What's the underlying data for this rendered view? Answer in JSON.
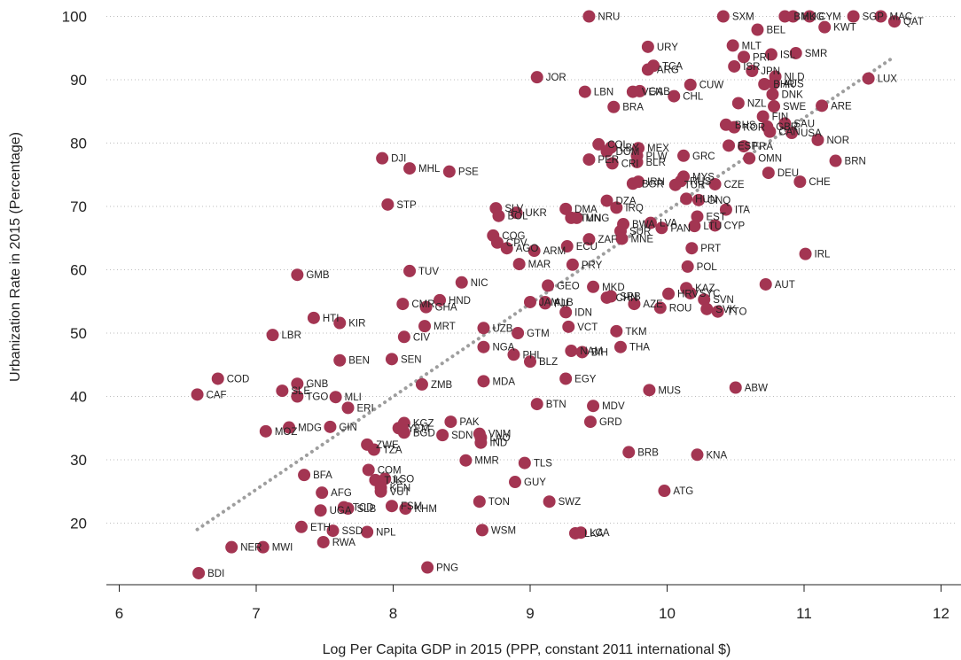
{
  "chart_data": {
    "type": "scatter",
    "title": "",
    "xlabel": "Log Per Capita GDP in 2015 (PPP, constant 2011 international $)",
    "ylabel": "Urbanization Rate in 2015 (Percentage)",
    "xlim": [
      6,
      12
    ],
    "ylim": [
      10,
      100
    ],
    "xticks": [
      6,
      7,
      8,
      9,
      10,
      11,
      12
    ],
    "yticks": [
      20,
      30,
      40,
      50,
      60,
      70,
      80,
      90,
      100
    ],
    "grid": "horizontal dotted",
    "marker_color": "#a33552",
    "trendline": {
      "style": "dotted",
      "color": "#9e9e9e",
      "x": [
        6.57,
        11.65
      ],
      "y": [
        19.0,
        93.5
      ]
    },
    "points": [
      {
        "label": "BDI",
        "x": 6.58,
        "y": 12.1
      },
      {
        "label": "CAF",
        "x": 6.57,
        "y": 40.3
      },
      {
        "label": "COD",
        "x": 6.72,
        "y": 42.8
      },
      {
        "label": "NER",
        "x": 6.82,
        "y": 16.2
      },
      {
        "label": "MWI",
        "x": 7.05,
        "y": 16.2
      },
      {
        "label": "MOZ",
        "x": 7.07,
        "y": 34.5
      },
      {
        "label": "LBR",
        "x": 7.12,
        "y": 49.7
      },
      {
        "label": "SLE",
        "x": 7.19,
        "y": 40.9
      },
      {
        "label": "HTI",
        "x": 7.42,
        "y": 52.4
      },
      {
        "label": "GMB",
        "x": 7.3,
        "y": 59.2
      },
      {
        "label": "MDG",
        "x": 7.24,
        "y": 35.1
      },
      {
        "label": "BFA",
        "x": 7.35,
        "y": 27.6
      },
      {
        "label": "ETH",
        "x": 7.33,
        "y": 19.4
      },
      {
        "label": "GNB",
        "x": 7.3,
        "y": 42.0
      },
      {
        "label": "TGO",
        "x": 7.3,
        "y": 40.0
      },
      {
        "label": "AFG",
        "x": 7.48,
        "y": 24.8
      },
      {
        "label": "UGA",
        "x": 7.47,
        "y": 22.0
      },
      {
        "label": "RWA",
        "x": 7.49,
        "y": 17.0
      },
      {
        "label": "SSD",
        "x": 7.56,
        "y": 18.8
      },
      {
        "label": "GIN",
        "x": 7.54,
        "y": 35.2
      },
      {
        "label": "MLI",
        "x": 7.58,
        "y": 39.9
      },
      {
        "label": "KIR",
        "x": 7.61,
        "y": 51.6
      },
      {
        "label": "BEN",
        "x": 7.61,
        "y": 45.7
      },
      {
        "label": "ERI",
        "x": 7.67,
        "y": 38.2
      },
      {
        "label": "TCD",
        "x": 7.64,
        "y": 22.5
      },
      {
        "label": "SLB",
        "x": 7.67,
        "y": 22.3
      },
      {
        "label": "ZWE",
        "x": 7.81,
        "y": 32.4
      },
      {
        "label": "TZA",
        "x": 7.86,
        "y": 31.6
      },
      {
        "label": "NPL",
        "x": 7.81,
        "y": 18.6
      },
      {
        "label": "COM",
        "x": 7.82,
        "y": 28.4
      },
      {
        "label": "TJK",
        "x": 7.87,
        "y": 26.8
      },
      {
        "label": "LSO",
        "x": 7.94,
        "y": 27.0
      },
      {
        "label": "KEN",
        "x": 7.91,
        "y": 25.6
      },
      {
        "label": "VUT",
        "x": 7.91,
        "y": 25.0
      },
      {
        "label": "FSM",
        "x": 7.99,
        "y": 22.7
      },
      {
        "label": "KHM",
        "x": 8.09,
        "y": 22.3
      },
      {
        "label": "DJI",
        "x": 7.92,
        "y": 77.6
      },
      {
        "label": "STP",
        "x": 7.96,
        "y": 70.3
      },
      {
        "label": "SEN",
        "x": 7.99,
        "y": 45.9
      },
      {
        "label": "CMR",
        "x": 8.07,
        "y": 54.6
      },
      {
        "label": "CIV",
        "x": 8.08,
        "y": 49.4
      },
      {
        "label": "YEM",
        "x": 8.04,
        "y": 35.0
      },
      {
        "label": "BGD",
        "x": 8.08,
        "y": 34.3
      },
      {
        "label": "KGZ",
        "x": 8.08,
        "y": 35.8
      },
      {
        "label": "MHL",
        "x": 8.12,
        "y": 76.0
      },
      {
        "label": "TUV",
        "x": 8.12,
        "y": 59.8
      },
      {
        "label": "GHA",
        "x": 8.24,
        "y": 54.1
      },
      {
        "label": "MRT",
        "x": 8.23,
        "y": 51.1
      },
      {
        "label": "ZMB",
        "x": 8.21,
        "y": 41.9
      },
      {
        "label": "HND",
        "x": 8.34,
        "y": 55.2
      },
      {
        "label": "PNG",
        "x": 8.25,
        "y": 13.0
      },
      {
        "label": "PSE",
        "x": 8.41,
        "y": 75.5
      },
      {
        "label": "NIC",
        "x": 8.5,
        "y": 58.0
      },
      {
        "label": "PAK",
        "x": 8.42,
        "y": 36.0
      },
      {
        "label": "SDN",
        "x": 8.36,
        "y": 33.9
      },
      {
        "label": "VNM",
        "x": 8.63,
        "y": 34.1
      },
      {
        "label": "LAO",
        "x": 8.64,
        "y": 33.5
      },
      {
        "label": "IND",
        "x": 8.64,
        "y": 32.7
      },
      {
        "label": "MMR",
        "x": 8.53,
        "y": 29.9
      },
      {
        "label": "TON",
        "x": 8.63,
        "y": 23.4
      },
      {
        "label": "WSM",
        "x": 8.65,
        "y": 18.9
      },
      {
        "label": "UZB",
        "x": 8.66,
        "y": 50.8
      },
      {
        "label": "NGA",
        "x": 8.66,
        "y": 47.8
      },
      {
        "label": "MDA",
        "x": 8.66,
        "y": 42.4
      },
      {
        "label": "SLV",
        "x": 8.75,
        "y": 69.7
      },
      {
        "label": "BOL",
        "x": 8.77,
        "y": 68.5
      },
      {
        "label": "COG",
        "x": 8.73,
        "y": 65.4
      },
      {
        "label": "CPV",
        "x": 8.76,
        "y": 64.3
      },
      {
        "label": "AGO",
        "x": 8.83,
        "y": 63.4
      },
      {
        "label": "UKR",
        "x": 8.9,
        "y": 69.0
      },
      {
        "label": "GTM",
        "x": 8.91,
        "y": 50.0
      },
      {
        "label": "PHL",
        "x": 8.88,
        "y": 46.6
      },
      {
        "label": "BLZ",
        "x": 9.0,
        "y": 45.5
      },
      {
        "label": "MAR",
        "x": 8.92,
        "y": 60.9
      },
      {
        "label": "JAM",
        "x": 9.0,
        "y": 54.9
      },
      {
        "label": "ALB",
        "x": 9.11,
        "y": 54.9
      },
      {
        "label": "FJI",
        "x": 9.11,
        "y": 54.7
      },
      {
        "label": "GEO",
        "x": 9.13,
        "y": 57.5
      },
      {
        "label": "ARM",
        "x": 9.03,
        "y": 63.0
      },
      {
        "label": "GUY",
        "x": 8.89,
        "y": 26.5
      },
      {
        "label": "TLS",
        "x": 8.96,
        "y": 29.5
      },
      {
        "label": "BTN",
        "x": 9.05,
        "y": 38.8
      },
      {
        "label": "SWZ",
        "x": 9.14,
        "y": 23.4
      },
      {
        "label": "JOR",
        "x": 9.05,
        "y": 90.4
      },
      {
        "label": "DMA",
        "x": 9.26,
        "y": 69.6
      },
      {
        "label": "TUN",
        "x": 9.3,
        "y": 68.2
      },
      {
        "label": "MNG",
        "x": 9.34,
        "y": 68.2
      },
      {
        "label": "ZAF",
        "x": 9.43,
        "y": 64.8
      },
      {
        "label": "ECU",
        "x": 9.27,
        "y": 63.7
      },
      {
        "label": "PRY",
        "x": 9.31,
        "y": 60.8
      },
      {
        "label": "IDN",
        "x": 9.26,
        "y": 53.3
      },
      {
        "label": "VCT",
        "x": 9.28,
        "y": 51.0
      },
      {
        "label": "NAM",
        "x": 9.3,
        "y": 47.2
      },
      {
        "label": "BIH",
        "x": 9.38,
        "y": 47.0
      },
      {
        "label": "EGY",
        "x": 9.26,
        "y": 42.8
      },
      {
        "label": "LKA",
        "x": 9.33,
        "y": 18.4
      },
      {
        "label": "LCA",
        "x": 9.37,
        "y": 18.5
      },
      {
        "label": "NRU",
        "x": 9.43,
        "y": 100.0
      },
      {
        "label": "LBN",
        "x": 9.4,
        "y": 88.1
      },
      {
        "label": "PER",
        "x": 9.43,
        "y": 77.4
      },
      {
        "label": "COL",
        "x": 9.5,
        "y": 79.8
      },
      {
        "label": "DOM",
        "x": 9.56,
        "y": 78.7
      },
      {
        "label": "LBY",
        "x": 9.59,
        "y": 79.3
      },
      {
        "label": "CRI",
        "x": 9.6,
        "y": 76.8
      },
      {
        "label": "DZA",
        "x": 9.56,
        "y": 70.9
      },
      {
        "label": "IRQ",
        "x": 9.63,
        "y": 69.8
      },
      {
        "label": "SUR",
        "x": 9.66,
        "y": 66.1
      },
      {
        "label": "BWA",
        "x": 9.68,
        "y": 67.2
      },
      {
        "label": "MNE",
        "x": 9.67,
        "y": 64.9
      },
      {
        "label": "CHN",
        "x": 9.56,
        "y": 55.6
      },
      {
        "label": "SRB",
        "x": 9.59,
        "y": 55.8
      },
      {
        "label": "MKD",
        "x": 9.46,
        "y": 57.3
      },
      {
        "label": "MDV",
        "x": 9.46,
        "y": 38.5
      },
      {
        "label": "GRD",
        "x": 9.44,
        "y": 36.0
      },
      {
        "label": "TKM",
        "x": 9.63,
        "y": 50.3
      },
      {
        "label": "THA",
        "x": 9.66,
        "y": 47.8
      },
      {
        "label": "BRB",
        "x": 9.72,
        "y": 31.2
      },
      {
        "label": "GAB",
        "x": 9.8,
        "y": 88.2
      },
      {
        "label": "VEN",
        "x": 9.75,
        "y": 88.1
      },
      {
        "label": "BRA",
        "x": 9.61,
        "y": 85.7
      },
      {
        "label": "ARG",
        "x": 9.86,
        "y": 91.6
      },
      {
        "label": "TCA",
        "x": 9.9,
        "y": 92.2
      },
      {
        "label": "URY",
        "x": 9.86,
        "y": 95.2
      },
      {
        "label": "MEX",
        "x": 9.79,
        "y": 79.2
      },
      {
        "label": "PLW",
        "x": 9.78,
        "y": 78.0
      },
      {
        "label": "BLR",
        "x": 9.78,
        "y": 77.0
      },
      {
        "label": "BGR",
        "x": 9.75,
        "y": 73.6
      },
      {
        "label": "IRN",
        "x": 9.79,
        "y": 73.9
      },
      {
        "label": "LVA",
        "x": 9.88,
        "y": 67.4
      },
      {
        "label": "PAN",
        "x": 9.96,
        "y": 66.6
      },
      {
        "label": "AZE",
        "x": 9.76,
        "y": 54.6
      },
      {
        "label": "ROU",
        "x": 9.95,
        "y": 54.0
      },
      {
        "label": "HRV",
        "x": 10.01,
        "y": 56.2
      },
      {
        "label": "MUS",
        "x": 9.87,
        "y": 41.0
      },
      {
        "label": "ATG",
        "x": 9.98,
        "y": 25.1
      },
      {
        "label": "CHL",
        "x": 10.05,
        "y": 87.4
      },
      {
        "label": "CUW",
        "x": 10.17,
        "y": 89.2
      },
      {
        "label": "GRC",
        "x": 10.12,
        "y": 78.0
      },
      {
        "label": "RUS",
        "x": 10.1,
        "y": 74.0
      },
      {
        "label": "TUR",
        "x": 10.06,
        "y": 73.4
      },
      {
        "label": "MYS",
        "x": 10.12,
        "y": 74.7
      },
      {
        "label": "HUN",
        "x": 10.14,
        "y": 71.2
      },
      {
        "label": "GNQ",
        "x": 10.23,
        "y": 71.0
      },
      {
        "label": "EST",
        "x": 10.22,
        "y": 68.4
      },
      {
        "label": "LTU",
        "x": 10.2,
        "y": 66.9
      },
      {
        "label": "PRT",
        "x": 10.18,
        "y": 63.4
      },
      {
        "label": "POL",
        "x": 10.15,
        "y": 60.5
      },
      {
        "label": "KAZ",
        "x": 10.14,
        "y": 57.1
      },
      {
        "label": "SYC",
        "x": 10.17,
        "y": 56.3
      },
      {
        "label": "SVN",
        "x": 10.27,
        "y": 55.3
      },
      {
        "label": "SVK",
        "x": 10.29,
        "y": 53.8
      },
      {
        "label": "TTO",
        "x": 10.37,
        "y": 53.4
      },
      {
        "label": "KNA",
        "x": 10.22,
        "y": 30.8
      },
      {
        "label": "CZE",
        "x": 10.35,
        "y": 73.5
      },
      {
        "label": "ITA",
        "x": 10.43,
        "y": 69.5
      },
      {
        "label": "CYP",
        "x": 10.35,
        "y": 67.0
      },
      {
        "label": "SXM",
        "x": 10.41,
        "y": 100.0
      },
      {
        "label": "BEL",
        "x": 10.66,
        "y": 97.9
      },
      {
        "label": "MLT",
        "x": 10.48,
        "y": 95.4
      },
      {
        "label": "PRI",
        "x": 10.56,
        "y": 93.6
      },
      {
        "label": "ISR",
        "x": 10.49,
        "y": 92.1
      },
      {
        "label": "ESP",
        "x": 10.45,
        "y": 79.6
      },
      {
        "label": "KOR",
        "x": 10.49,
        "y": 82.5
      },
      {
        "label": "BHS",
        "x": 10.43,
        "y": 82.9
      },
      {
        "label": "NZL",
        "x": 10.52,
        "y": 86.3
      },
      {
        "label": "FRA",
        "x": 10.56,
        "y": 79.5
      },
      {
        "label": "OMN",
        "x": 10.6,
        "y": 77.6
      },
      {
        "label": "ABW",
        "x": 10.5,
        "y": 41.4
      },
      {
        "label": "AUT",
        "x": 10.72,
        "y": 57.7
      },
      {
        "label": "JPN",
        "x": 10.62,
        "y": 91.4
      },
      {
        "label": "BHR",
        "x": 10.71,
        "y": 89.3
      },
      {
        "label": "NLD",
        "x": 10.79,
        "y": 90.5
      },
      {
        "label": "FIN",
        "x": 10.7,
        "y": 84.2
      },
      {
        "label": "AUS",
        "x": 10.78,
        "y": 89.4
      },
      {
        "label": "GBR",
        "x": 10.73,
        "y": 82.6
      },
      {
        "label": "DEU",
        "x": 10.74,
        "y": 75.3
      },
      {
        "label": "CAN",
        "x": 10.75,
        "y": 81.8
      },
      {
        "label": "ISL",
        "x": 10.76,
        "y": 94.0
      },
      {
        "label": "DNK",
        "x": 10.77,
        "y": 87.7
      },
      {
        "label": "SWE",
        "x": 10.78,
        "y": 85.8
      },
      {
        "label": "SAU",
        "x": 10.86,
        "y": 83.1
      },
      {
        "label": "USA",
        "x": 10.91,
        "y": 81.6
      },
      {
        "label": "IRL",
        "x": 11.01,
        "y": 62.5
      },
      {
        "label": "CHE",
        "x": 10.97,
        "y": 73.9
      },
      {
        "label": "ARE",
        "x": 11.13,
        "y": 85.9
      },
      {
        "label": "NOR",
        "x": 11.1,
        "y": 80.5
      },
      {
        "label": "BRN",
        "x": 11.23,
        "y": 77.2
      },
      {
        "label": "BMU",
        "x": 10.86,
        "y": 100.0
      },
      {
        "label": "HKG",
        "x": 10.92,
        "y": 100.0
      },
      {
        "label": "CYM",
        "x": 11.04,
        "y": 100.0
      },
      {
        "label": "KWT",
        "x": 11.15,
        "y": 98.3
      },
      {
        "label": "SMR",
        "x": 10.94,
        "y": 94.2
      },
      {
        "label": "SGP",
        "x": 11.36,
        "y": 100.0
      },
      {
        "label": "MAC",
        "x": 11.56,
        "y": 100.0
      },
      {
        "label": "QAT",
        "x": 11.66,
        "y": 99.2
      },
      {
        "label": "LUX",
        "x": 11.47,
        "y": 90.2
      }
    ]
  }
}
